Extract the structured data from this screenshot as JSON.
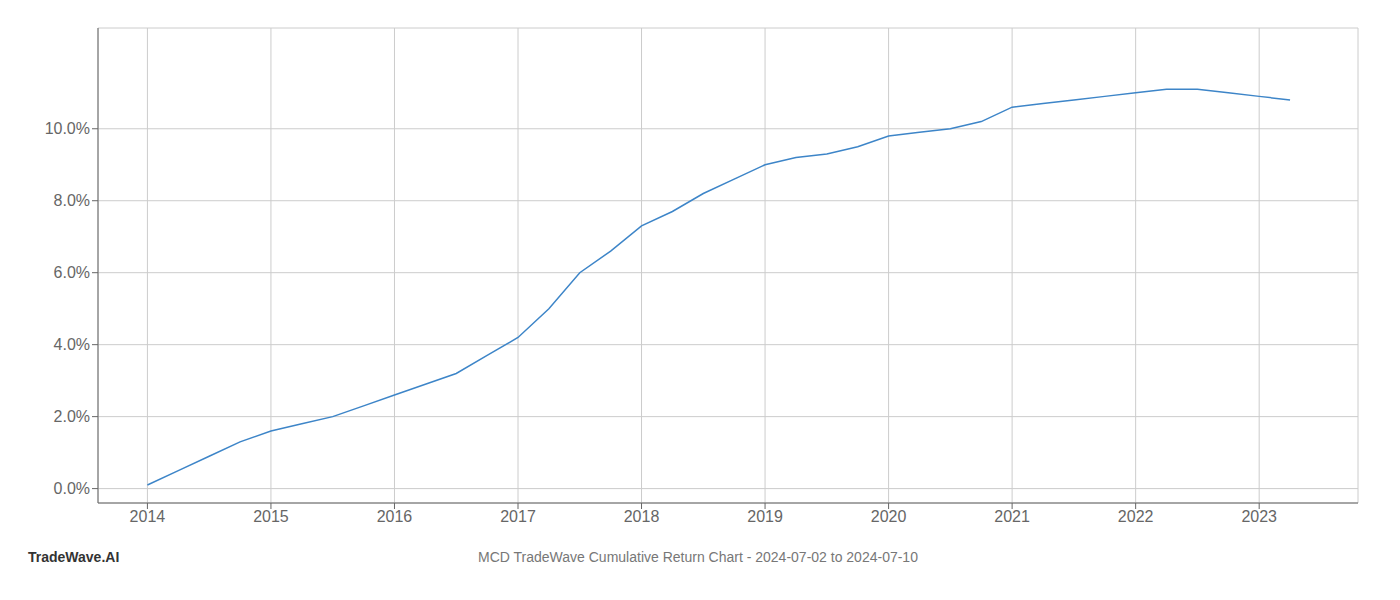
{
  "chart_data": {
    "type": "line",
    "title": "MCD TradeWave Cumulative Return Chart - 2024-07-02 to 2024-07-10",
    "annotations": [
      "TradeWave.AI"
    ],
    "x": [
      2014.0,
      2014.25,
      2014.5,
      2014.75,
      2015.0,
      2015.25,
      2015.5,
      2015.75,
      2016.0,
      2016.25,
      2016.5,
      2016.75,
      2017.0,
      2017.25,
      2017.5,
      2017.75,
      2018.0,
      2018.25,
      2018.5,
      2018.75,
      2019.0,
      2019.25,
      2019.5,
      2019.75,
      2020.0,
      2020.25,
      2020.5,
      2020.75,
      2021.0,
      2021.25,
      2021.5,
      2021.75,
      2022.0,
      2022.25,
      2022.5,
      2022.75,
      2023.0,
      2023.25
    ],
    "values": [
      0.001,
      0.005,
      0.009,
      0.013,
      0.016,
      0.018,
      0.02,
      0.023,
      0.026,
      0.029,
      0.032,
      0.037,
      0.042,
      0.05,
      0.06,
      0.066,
      0.073,
      0.077,
      0.082,
      0.086,
      0.09,
      0.092,
      0.093,
      0.095,
      0.098,
      0.099,
      0.1,
      0.102,
      0.106,
      0.107,
      0.108,
      0.109,
      0.11,
      0.111,
      0.111,
      0.11,
      0.109,
      0.108
    ],
    "color": "#3d85c8",
    "xlim": [
      2013.6,
      2023.8
    ],
    "ylim": [
      -0.004,
      0.128
    ],
    "xticks": [
      2014,
      2015,
      2016,
      2017,
      2018,
      2019,
      2020,
      2021,
      2022,
      2023
    ],
    "yticks": [
      {
        "value": 0.0,
        "label": "0.0%"
      },
      {
        "value": 0.02,
        "label": "2.0%"
      },
      {
        "value": 0.04,
        "label": "4.0%"
      },
      {
        "value": 0.06,
        "label": "6.0%"
      },
      {
        "value": 0.08,
        "label": "8.0%"
      },
      {
        "value": 0.1,
        "label": "10.0%"
      }
    ],
    "grid": true
  }
}
